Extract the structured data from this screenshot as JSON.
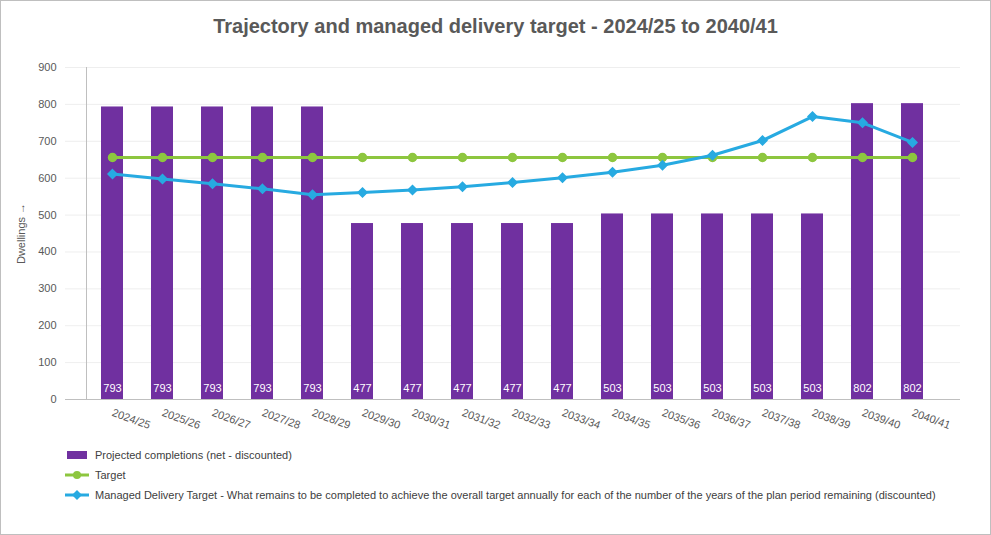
{
  "chart_data": {
    "type": "bar",
    "title": "Trajectory and managed delivery target - 2024/25 to 2040/41",
    "y_label": "Dwellings",
    "categories": [
      "2024/25",
      "2025/26",
      "2026/27",
      "2027/28",
      "2028/29",
      "2029/30",
      "2030/31",
      "2031/32",
      "2032/33",
      "2033/34",
      "2034/35",
      "2035/36",
      "2036/37",
      "2037/38",
      "2038/39",
      "2039/40",
      "2040/41"
    ],
    "series": [
      {
        "name": "Projected completions (net - discounted)",
        "type": "bar",
        "color": "#7030a0",
        "values": [
          793,
          793,
          793,
          793,
          793,
          477,
          477,
          477,
          477,
          477,
          503,
          503,
          503,
          503,
          503,
          802,
          802
        ]
      },
      {
        "name": "Target",
        "type": "line",
        "color": "#8dc63f",
        "marker": "circle",
        "values": [
          656,
          656,
          656,
          656,
          656,
          656,
          656,
          656,
          656,
          656,
          656,
          656,
          656,
          656,
          656,
          656,
          656
        ]
      },
      {
        "name": "Managed Delivery Target - What remains to be completed to achieve the overall target annually for each of the number of the years of the plan period remaining (discounted)",
        "type": "line",
        "color": "#27aae1",
        "marker": "diamond",
        "values": [
          611,
          598,
          585,
          571,
          555,
          561,
          568,
          577,
          588,
          601,
          616,
          635,
          662,
          702,
          767,
          750,
          697
        ]
      }
    ],
    "ylim": [
      0,
      900
    ],
    "yticks": [
      0,
      100,
      200,
      300,
      400,
      500,
      600,
      700,
      800,
      900
    ],
    "grid": true,
    "data_labels": true,
    "legend": "bottom"
  }
}
